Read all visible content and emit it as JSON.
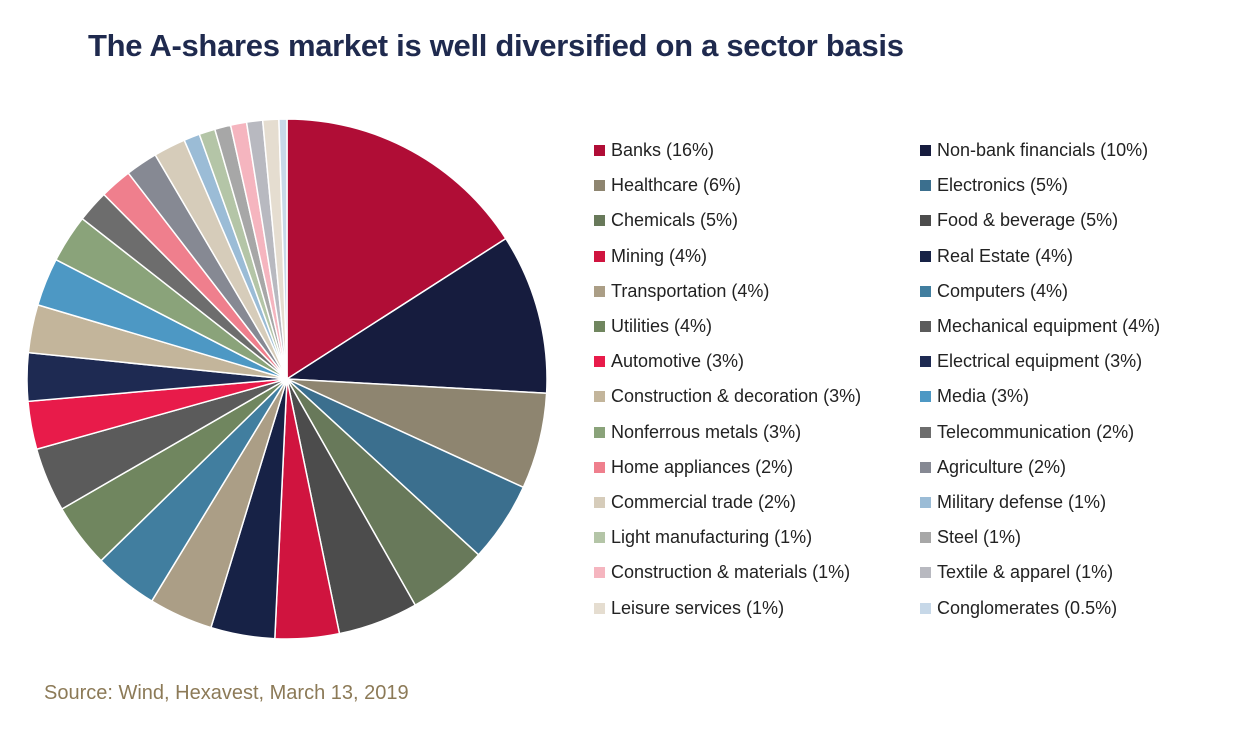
{
  "chart_data": {
    "type": "pie",
    "title": "The A-shares market is well diversified on a sector basis",
    "source": "Source: Wind, Hexavest, March 13, 2019",
    "legend_placement": "right",
    "slices": [
      {
        "label": "Banks (16%)",
        "value": 16,
        "color": "#b00d36"
      },
      {
        "label": "Non-bank financials (10%)",
        "value": 10,
        "color": "#161c3e"
      },
      {
        "label": "Healthcare (6%)",
        "value": 6,
        "color": "#8e8570"
      },
      {
        "label": "Electronics (5%)",
        "value": 5,
        "color": "#3b6f8e"
      },
      {
        "label": "Chemicals (5%)",
        "value": 5,
        "color": "#68795a"
      },
      {
        "label": "Food & beverage (5%)",
        "value": 5,
        "color": "#4c4c4c"
      },
      {
        "label": "Mining (4%)",
        "value": 4,
        "color": "#d0143f"
      },
      {
        "label": "Real Estate (4%)",
        "value": 4,
        "color": "#172246"
      },
      {
        "label": "Transportation (4%)",
        "value": 4,
        "color": "#ab9e86"
      },
      {
        "label": "Computers (4%)",
        "value": 4,
        "color": "#417e9f"
      },
      {
        "label": "Utilities (4%)",
        "value": 4,
        "color": "#70865f"
      },
      {
        "label": "Mechanical equipment (4%)",
        "value": 4,
        "color": "#5b5b5b"
      },
      {
        "label": "Automotive (3%)",
        "value": 3,
        "color": "#e81b4a"
      },
      {
        "label": "Electrical equipment (3%)",
        "value": 3,
        "color": "#1e2a52"
      },
      {
        "label": "Construction & decoration (3%)",
        "value": 3,
        "color": "#c3b59b"
      },
      {
        "label": "Media (3%)",
        "value": 3,
        "color": "#4d98c4"
      },
      {
        "label": "Nonferrous metals (3%)",
        "value": 3,
        "color": "#8aa37a"
      },
      {
        "label": "Telecommunication (2%)",
        "value": 2,
        "color": "#6d6d6d"
      },
      {
        "label": "Home appliances (2%)",
        "value": 2,
        "color": "#ef7f8d"
      },
      {
        "label": "Agriculture (2%)",
        "value": 2,
        "color": "#868993"
      },
      {
        "label": "Commercial trade (2%)",
        "value": 2,
        "color": "#d6ccba"
      },
      {
        "label": "Military defense (1%)",
        "value": 1,
        "color": "#9bbcd6"
      },
      {
        "label": "Light manufacturing (1%)",
        "value": 1,
        "color": "#b4c5a7"
      },
      {
        "label": "Steel (1%)",
        "value": 1,
        "color": "#a7a7a7"
      },
      {
        "label": "Construction & materials (1%)",
        "value": 1,
        "color": "#f5b5bf"
      },
      {
        "label": "Textile & apparel (1%)",
        "value": 1,
        "color": "#b8b9c0"
      },
      {
        "label": "Leisure services (1%)",
        "value": 1,
        "color": "#e5ddd0"
      },
      {
        "label": "Conglomerates (0.5%)",
        "value": 0.5,
        "color": "#c7d8e8"
      }
    ]
  }
}
